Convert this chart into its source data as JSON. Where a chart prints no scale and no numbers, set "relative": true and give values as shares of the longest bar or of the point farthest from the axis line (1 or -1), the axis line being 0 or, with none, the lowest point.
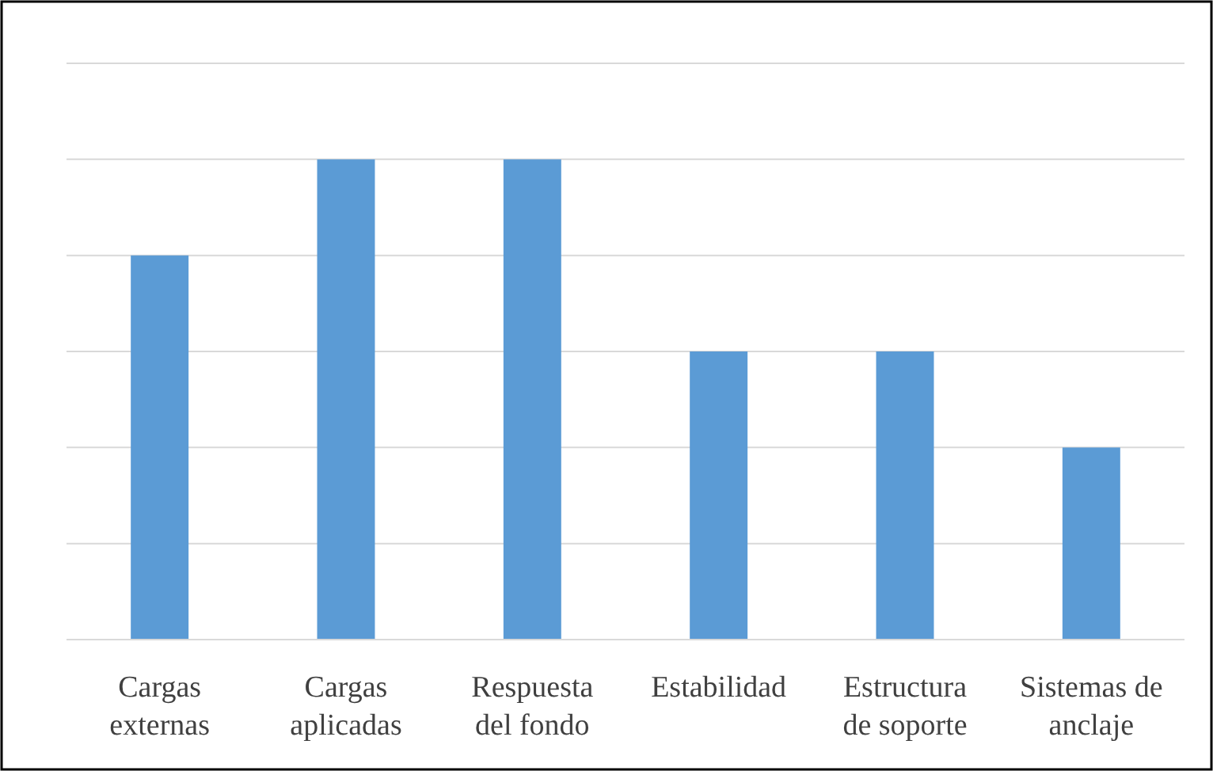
{
  "chart_data": {
    "type": "bar",
    "relative": true,
    "categories": [
      "Cargas externas",
      "Cargas aplicadas",
      "Respuesta del fondo",
      "Estabilidad",
      "Estructura de soporte",
      "Sistemas de anclaje"
    ],
    "values": [
      0.8,
      1,
      1,
      0.6,
      0.6,
      0.4
    ],
    "color": "#5b9bd5",
    "grid": "y"
  }
}
